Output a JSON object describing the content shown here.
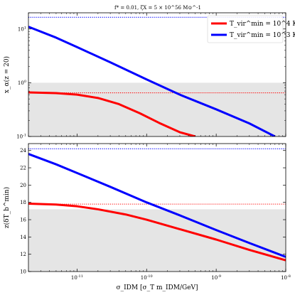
{
  "figure": {
    "title": "f* = 0.01, ζX = 5 × 10^56 M⊙^-1"
  },
  "legend": {
    "placement": "top-right",
    "entries": [
      {
        "label": "T_vir^min = 10^4 K",
        "color": "#ff0000"
      },
      {
        "label": "T_vir^min = 10^3 K",
        "color": "#0000ff"
      }
    ]
  },
  "chart_data": [
    {
      "type": "line",
      "panel": "top",
      "ylabel": "x_α(z = 20)",
      "xscale": "log",
      "yscale": "log",
      "xlim": [
        2e-12,
        1e-08
      ],
      "ylim": [
        0.1,
        20
      ],
      "yticks": [
        {
          "value": 0.1,
          "label": "10^-1"
        },
        {
          "value": 1,
          "label": "10^0"
        },
        {
          "value": 10,
          "label": "10^1"
        }
      ],
      "xticks": [
        {
          "value": 1e-11,
          "label": ""
        },
        {
          "value": 1e-10,
          "label": ""
        },
        {
          "value": 1e-09,
          "label": ""
        },
        {
          "value": 1e-08,
          "label": ""
        }
      ],
      "shaded_region": {
        "from": 0.1,
        "to": 1.0,
        "color": "#e5e5e5"
      },
      "reference_lines": [
        {
          "name": "10^3 K reference",
          "y": 16.5,
          "color": "#0000ff",
          "style": "dotted"
        },
        {
          "name": "10^4 K reference",
          "y": 0.65,
          "color": "#ff0000",
          "style": "dotted"
        }
      ],
      "series": [
        {
          "name": "T_vir^min = 10^4 K",
          "color": "#ff0000",
          "x": [
            2e-12,
            5e-12,
            1e-11,
            2e-11,
            4e-11,
            8e-11,
            1.5e-10,
            3e-10,
            5e-10
          ],
          "y": [
            0.66,
            0.64,
            0.6,
            0.52,
            0.4,
            0.27,
            0.18,
            0.12,
            0.1
          ]
        },
        {
          "name": "T_vir^min = 10^3 K",
          "color": "#0000ff",
          "x": [
            2e-12,
            5e-12,
            1e-11,
            3e-11,
            1e-10,
            3e-10,
            1e-09,
            3e-09,
            7e-09
          ],
          "y": [
            11,
            6.9,
            4.6,
            2.4,
            1.15,
            0.6,
            0.32,
            0.175,
            0.1
          ]
        }
      ]
    },
    {
      "type": "line",
      "panel": "bottom",
      "ylabel": "z(δT_b^min)",
      "xlabel": "σ_IDM [σ_T m_IDM/GeV]",
      "xscale": "log",
      "yscale": "linear",
      "xlim": [
        2e-12,
        1e-08
      ],
      "ylim": [
        10,
        24.8
      ],
      "yticks": [
        {
          "value": 10,
          "label": "10"
        },
        {
          "value": 12,
          "label": "12"
        },
        {
          "value": 14,
          "label": "14"
        },
        {
          "value": 16,
          "label": "16"
        },
        {
          "value": 18,
          "label": "18"
        },
        {
          "value": 20,
          "label": "20"
        },
        {
          "value": 22,
          "label": "22"
        },
        {
          "value": 24,
          "label": "24"
        }
      ],
      "xticks": [
        {
          "value": 1e-11,
          "label": "10^-11"
        },
        {
          "value": 1e-10,
          "label": "10^-10"
        },
        {
          "value": 1e-09,
          "label": "10^-9"
        },
        {
          "value": 1e-08,
          "label": "10^-8"
        }
      ],
      "shaded_region": {
        "from": 10,
        "to": 17.2,
        "color": "#e5e5e5"
      },
      "reference_lines": [
        {
          "name": "10^3 K reference",
          "y": 24.2,
          "color": "#0000ff",
          "style": "dotted"
        },
        {
          "name": "10^4 K reference",
          "y": 17.8,
          "color": "#ff0000",
          "style": "dotted"
        }
      ],
      "series": [
        {
          "name": "T_vir^min = 10^4 K",
          "color": "#ff0000",
          "x": [
            2e-12,
            5e-12,
            1e-11,
            2e-11,
            5e-11,
            1e-10,
            3e-10,
            1e-09,
            3e-09,
            1e-08
          ],
          "y": [
            17.85,
            17.75,
            17.55,
            17.2,
            16.6,
            16.0,
            14.9,
            13.7,
            12.5,
            11.3
          ]
        },
        {
          "name": "T_vir^min = 10^3 K",
          "color": "#0000ff",
          "x": [
            2e-12,
            5e-12,
            1e-11,
            3e-11,
            1e-10,
            3e-10,
            1e-09,
            3e-09,
            1e-08
          ],
          "y": [
            23.6,
            22.4,
            21.4,
            19.8,
            18.0,
            16.5,
            14.8,
            13.3,
            11.7
          ]
        }
      ]
    }
  ]
}
